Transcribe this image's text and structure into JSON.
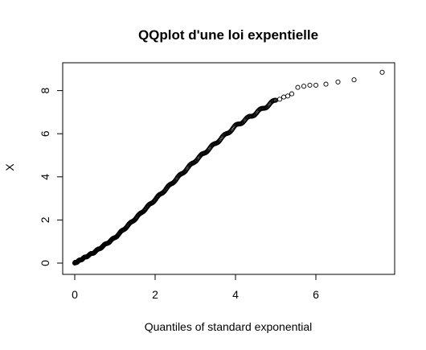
{
  "chart_data": {
    "type": "scatter",
    "title": "QQplot d'une loi expentielle",
    "xlabel": "Quantiles of standard exponential",
    "ylabel": "X",
    "xlim": [
      0,
      7.65
    ],
    "ylim": [
      0,
      8.85
    ],
    "xticks": [
      "0",
      "2",
      "4",
      "6"
    ],
    "yticks": [
      "0",
      "2",
      "4",
      "6",
      "8"
    ],
    "grid": false,
    "marker": "open-circle",
    "color": "#000000",
    "curve": [
      [
        0,
        0
      ],
      [
        0.5,
        0.52
      ],
      [
        1.0,
        1.18
      ],
      [
        1.5,
        2.05
      ],
      [
        2.0,
        2.95
      ],
      [
        2.5,
        3.85
      ],
      [
        3.0,
        4.75
      ],
      [
        3.5,
        5.55
      ],
      [
        4.0,
        6.35
      ],
      [
        4.5,
        6.95
      ],
      [
        5.0,
        7.55
      ]
    ],
    "series": [
      {
        "values": [
          [
            5.1,
            7.6
          ],
          [
            5.2,
            7.7
          ],
          [
            5.3,
            7.75
          ],
          [
            5.4,
            7.85
          ],
          [
            5.55,
            8.15
          ],
          [
            5.7,
            8.2
          ],
          [
            5.85,
            8.25
          ],
          [
            6.0,
            8.25
          ],
          [
            6.25,
            8.3
          ],
          [
            6.55,
            8.4
          ],
          [
            6.95,
            8.5
          ],
          [
            7.65,
            8.85
          ]
        ]
      }
    ]
  }
}
